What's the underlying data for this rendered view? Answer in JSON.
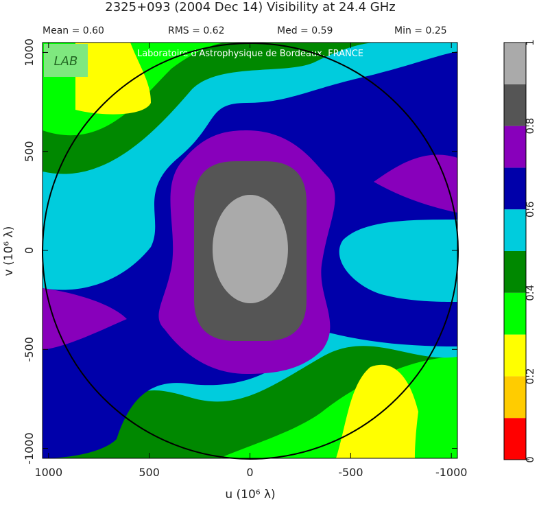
{
  "chart_data": {
    "type": "contour",
    "title": "2325+093  (2004 Dec 14)   Visibility at 24.4 GHz",
    "stats": [
      "Mean =  0.60",
      "RMS =  0.62",
      "Med =  0.59",
      "Min =  0.25"
    ],
    "annotation": "Laboratoire d'Astrophysique de Bordeaux, FRANCE",
    "logo": "LAB",
    "x_label": "u  (10⁶ λ)",
    "y_label": "v  (10⁶ λ)",
    "xlim": [
      1030,
      -1030
    ],
    "ylim": [
      -1050,
      1050
    ],
    "xticks": [
      1000,
      500,
      0,
      -500,
      -1000
    ],
    "yticks": [
      -1000,
      -500,
      0,
      500,
      1000
    ],
    "levels": [
      0,
      0.1,
      0.2,
      0.3,
      0.4,
      0.5,
      0.6,
      0.7,
      0.8,
      0.9,
      1
    ],
    "colors": [
      "#ff0000",
      "#ffcc00",
      "#ffff00",
      "#00ff00",
      "#008800",
      "#00ccdd",
      "#0000aa",
      "#8800bb",
      "#555555",
      "#aaaaaa"
    ],
    "cbar_ticks": [
      0,
      0.2,
      0.4,
      0.6,
      0.8,
      1
    ]
  }
}
